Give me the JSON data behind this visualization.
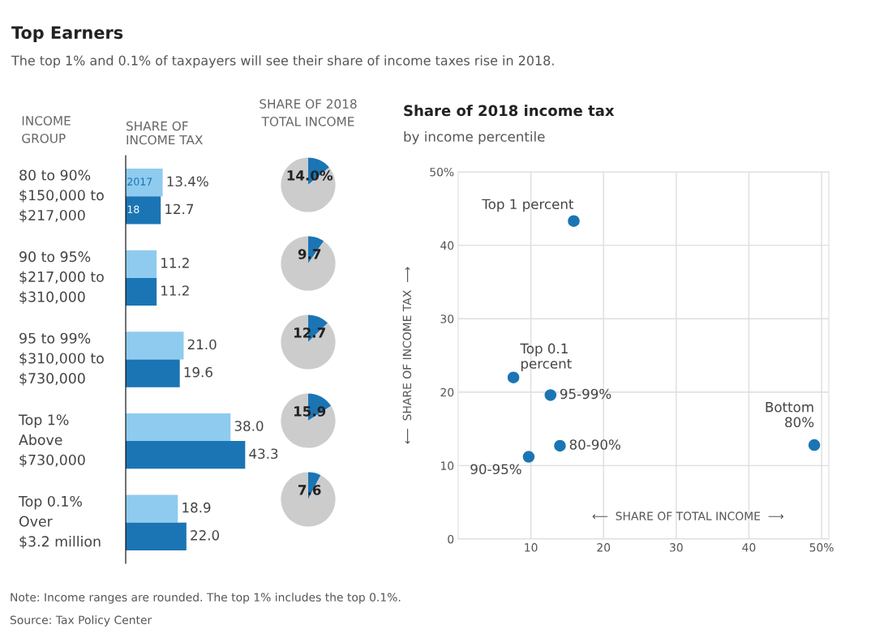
{
  "chart_data": [
    {
      "type": "bar",
      "orientation": "horizontal",
      "title": "Top Earners",
      "subtitle": "The top 1% and 0.1% of taxpayers will see their share of income taxes rise in 2018.",
      "ylabel": "INCOME\nGROUP",
      "xlabel": "SHARE OF\nINCOME TAX",
      "categories": [
        "80 to 90%\n$150,000 to\n$217,000",
        "90 to 95%\n$217,000 to\n$310,000",
        "95 to 99%\n$310,000 to\n$730,000",
        "Top 1%\nAbove\n$730,000",
        "Top 0.1%\nOver\n$3.2 million"
      ],
      "series": [
        {
          "name": "2017",
          "color": "#8fcbef",
          "values": [
            13.4,
            11.2,
            21.0,
            38.0,
            18.9
          ],
          "value_labels": [
            "13.4%",
            "11.2",
            "21.0",
            "38.0",
            "18.9"
          ]
        },
        {
          "name": "18",
          "color": "#1b75b4",
          "values": [
            12.7,
            11.2,
            19.6,
            43.3,
            22.0
          ],
          "value_labels": [
            "12.7",
            "11.2",
            "19.6",
            "43.3",
            "22.0"
          ]
        }
      ],
      "tick_labels": "y",
      "legend": false,
      "annotations": [
        "Note: Income ranges are rounded. The top 1% includes the top 0.1%.",
        "Source: Tax Policy Center"
      ]
    },
    {
      "type": "pie",
      "title": "SHARE OF 2018\nTOTAL INCOME",
      "categories": [
        null,
        null
      ],
      "values": [
        14.0,
        86.0
      ],
      "colors": [
        "#1b75b4",
        "#cccccc"
      ],
      "value_labels": [
        "14.0%",
        null
      ]
    },
    {
      "type": "pie",
      "categories": [
        null,
        null
      ],
      "values": [
        9.7,
        90.3
      ],
      "colors": [
        "#1b75b4",
        "#cccccc"
      ],
      "value_labels": [
        "9.7",
        null
      ]
    },
    {
      "type": "pie",
      "categories": [
        null,
        null
      ],
      "values": [
        12.7,
        87.3
      ],
      "colors": [
        "#1b75b4",
        "#cccccc"
      ],
      "value_labels": [
        "12.7",
        null
      ]
    },
    {
      "type": "pie",
      "categories": [
        null,
        null
      ],
      "values": [
        15.9,
        84.1
      ],
      "colors": [
        "#1b75b4",
        "#cccccc"
      ],
      "value_labels": [
        "15.9",
        null
      ]
    },
    {
      "type": "pie",
      "categories": [
        null,
        null
      ],
      "values": [
        7.6,
        92.4
      ],
      "colors": [
        "#1b75b4",
        "#cccccc"
      ],
      "value_labels": [
        "7.6",
        null
      ]
    },
    {
      "type": "scatter",
      "title": "Share of 2018 income tax",
      "subtitle": "by income percentile",
      "xlabel": "⟵  SHARE OF TOTAL INCOME  ⟶",
      "ylabel": "⟵  SHARE OF INCOME TAX  ⟶",
      "x": [
        14.0,
        9.7,
        12.7,
        15.9,
        7.6,
        49.0
      ],
      "series": [
        {
          "color": "#1b75b4",
          "values": [
            12.7,
            11.2,
            19.6,
            43.3,
            22.0,
            12.8
          ]
        }
      ],
      "marker": "circle",
      "grid": true,
      "xlim": [
        0,
        51
      ],
      "ylim": [
        0,
        50
      ],
      "xticks": [
        10,
        20,
        30,
        40,
        {
          "value": 50,
          "label": "50%"
        }
      ],
      "yticks": [
        0,
        10,
        20,
        30,
        40,
        {
          "value": 50,
          "label": "50%"
        }
      ],
      "annotations": [
        {
          "text": "80-90%",
          "x": 14.0,
          "y": 12.7
        },
        {
          "text": "90-95%",
          "x": 9.7,
          "y": 11.2
        },
        {
          "text": "95-99%",
          "x": 12.7,
          "y": 19.6
        },
        {
          "text": "Top 1 percent",
          "x": 15.9,
          "y": 43.3
        },
        {
          "text": "Top 0.1\npercent",
          "x": 7.6,
          "y": 22.0
        },
        {
          "text": "Bottom\n80%",
          "x": 49.0,
          "y": 12.8
        }
      ]
    }
  ]
}
